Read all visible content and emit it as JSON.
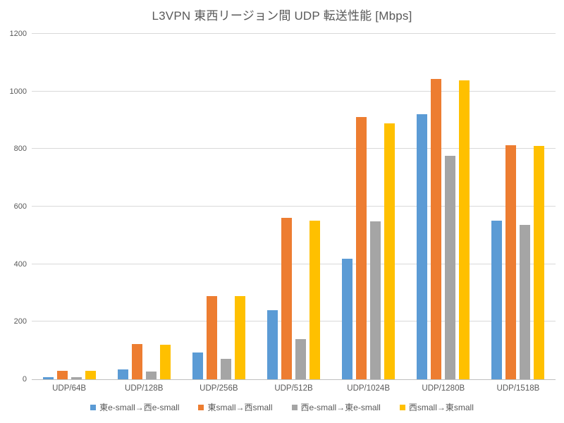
{
  "chart_data": {
    "type": "bar",
    "title": "L3VPN 東西リージョン間 UDP 転送性能 [Mbps]",
    "categories": [
      "UDP/64B",
      "UDP/128B",
      "UDP/256B",
      "UDP/512B",
      "UDP/1024B",
      "UDP/1280B",
      "UDP/1518B"
    ],
    "series": [
      {
        "name": "東e-small→西e-small",
        "color": "#5B9BD5",
        "values": [
          8,
          34,
          92,
          241,
          418,
          922,
          551
        ]
      },
      {
        "name": "東small→西small",
        "color": "#ED7D31",
        "values": [
          30,
          122,
          288,
          561,
          912,
          1044,
          813
        ]
      },
      {
        "name": "西e-small→東e-small",
        "color": "#A5A5A5",
        "values": [
          7,
          27,
          71,
          140,
          549,
          777,
          536
        ]
      },
      {
        "name": "西small→東small",
        "color": "#FFC000",
        "values": [
          30,
          120,
          288,
          551,
          890,
          1039,
          810
        ]
      }
    ],
    "xlabel": "",
    "ylabel": "",
    "ylim": [
      0,
      1200
    ],
    "ytick_step": 200,
    "grid": true,
    "legend_position": "bottom"
  },
  "colors": {
    "background": "#FFFFFF",
    "title_text": "#595959",
    "axis_text": "#595959",
    "gridline": "#D9D9D9",
    "axis_line": "#BFBFBF"
  }
}
